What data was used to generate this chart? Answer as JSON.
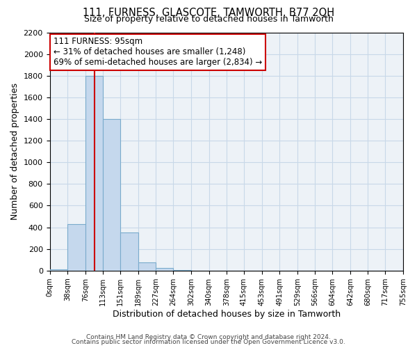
{
  "title": "111, FURNESS, GLASCOTE, TAMWORTH, B77 2QH",
  "subtitle": "Size of property relative to detached houses in Tamworth",
  "xlabel": "Distribution of detached houses by size in Tamworth",
  "ylabel": "Number of detached properties",
  "bar_color": "#c5d8ed",
  "bar_edge_color": "#7aabcc",
  "grid_color": "#c8d8e8",
  "bins": [
    0,
    38,
    76,
    113,
    151,
    189,
    227,
    264,
    302,
    340,
    378,
    415,
    453,
    491,
    529,
    566,
    604,
    642,
    680,
    717,
    755
  ],
  "counts": [
    15,
    430,
    1800,
    1400,
    350,
    75,
    25,
    5,
    0,
    0,
    0,
    0,
    0,
    0,
    0,
    0,
    0,
    0,
    0,
    0
  ],
  "tick_labels": [
    "0sqm",
    "38sqm",
    "76sqm",
    "113sqm",
    "151sqm",
    "189sqm",
    "227sqm",
    "264sqm",
    "302sqm",
    "340sqm",
    "378sqm",
    "415sqm",
    "453sqm",
    "491sqm",
    "529sqm",
    "566sqm",
    "604sqm",
    "642sqm",
    "680sqm",
    "717sqm",
    "755sqm"
  ],
  "ylim": [
    0,
    2200
  ],
  "yticks": [
    0,
    200,
    400,
    600,
    800,
    1000,
    1200,
    1400,
    1600,
    1800,
    2000,
    2200
  ],
  "property_line_x": 95,
  "property_line_color": "#cc0000",
  "annotation_title": "111 FURNESS: 95sqm",
  "annotation_line1": "← 31% of detached houses are smaller (1,248)",
  "annotation_line2": "69% of semi-detached houses are larger (2,834) →",
  "annotation_box_color": "#ffffff",
  "annotation_box_edge": "#cc0000",
  "footer_line1": "Contains HM Land Registry data © Crown copyright and database right 2024.",
  "footer_line2": "Contains public sector information licensed under the Open Government Licence v3.0.",
  "background_color": "#ffffff",
  "plot_bg_color": "#edf2f7"
}
